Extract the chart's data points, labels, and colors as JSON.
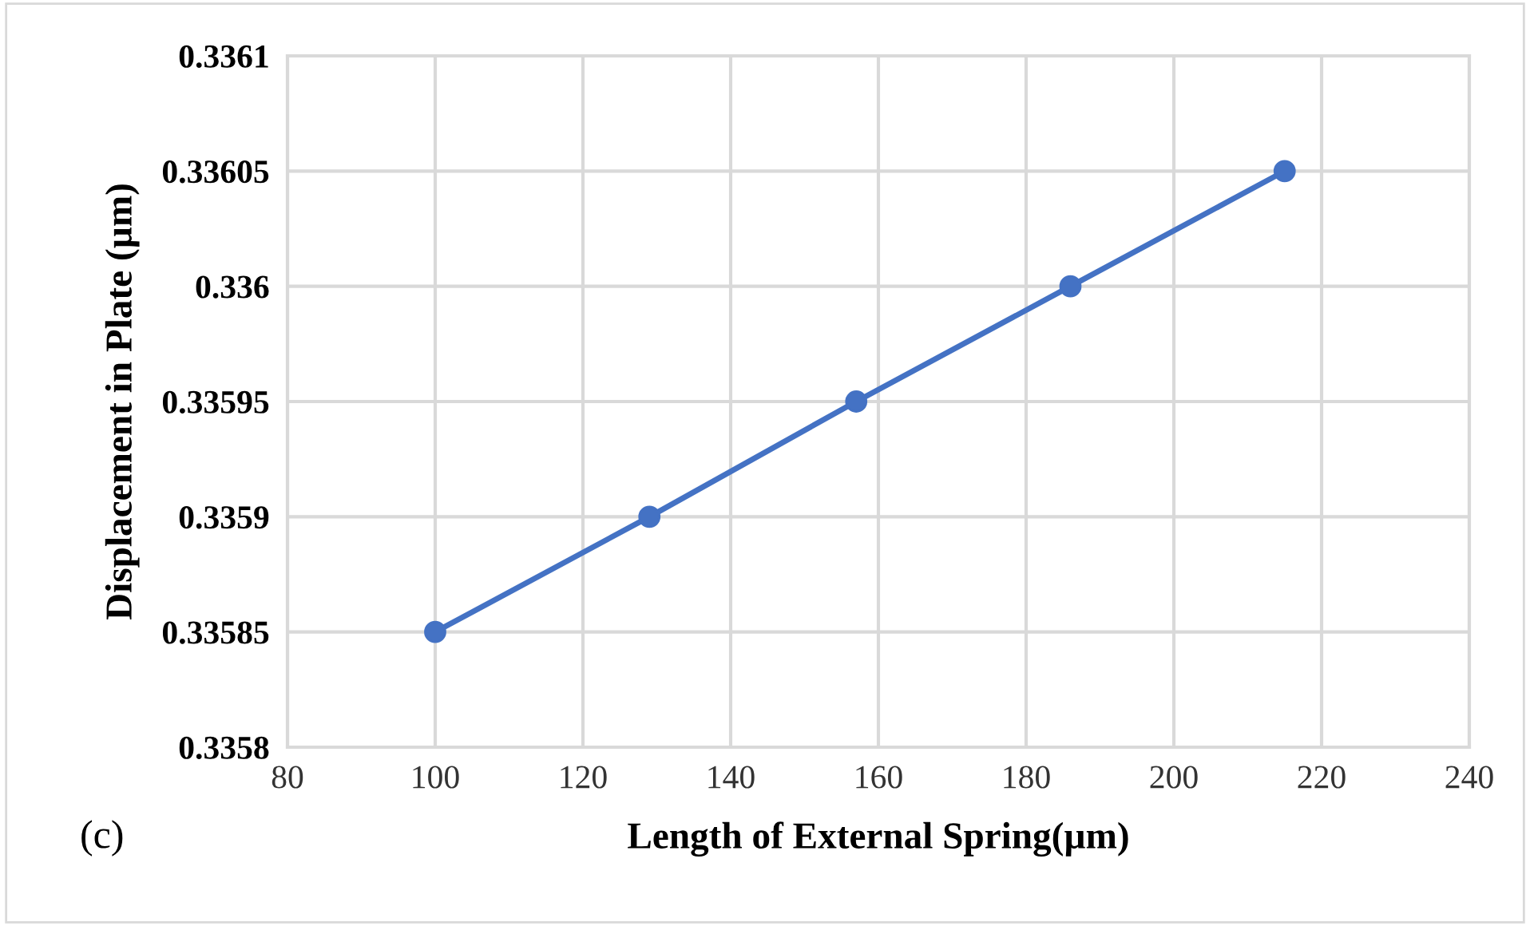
{
  "chart_data": {
    "type": "line",
    "xlabel": "Length of External Spring(µm)",
    "ylabel": "Displacement in Plate (µm)",
    "x": [
      100,
      129,
      157,
      186,
      215
    ],
    "series": [
      {
        "color": "#4472c4",
        "values": [
          0.33585,
          0.3359,
          0.33595,
          0.336,
          0.33605
        ]
      }
    ],
    "xlim": [
      80,
      240
    ],
    "xticks": [
      80,
      100,
      120,
      140,
      160,
      180,
      200,
      220,
      240
    ],
    "ylim": [
      0.3358,
      0.3361
    ],
    "yticks": [
      0.3358,
      0.33585,
      0.3359,
      0.33595,
      0.336,
      0.33605,
      0.3361
    ],
    "grid": true,
    "marker": "circle",
    "line_style": "solid",
    "annotations": [
      "(c)"
    ]
  }
}
